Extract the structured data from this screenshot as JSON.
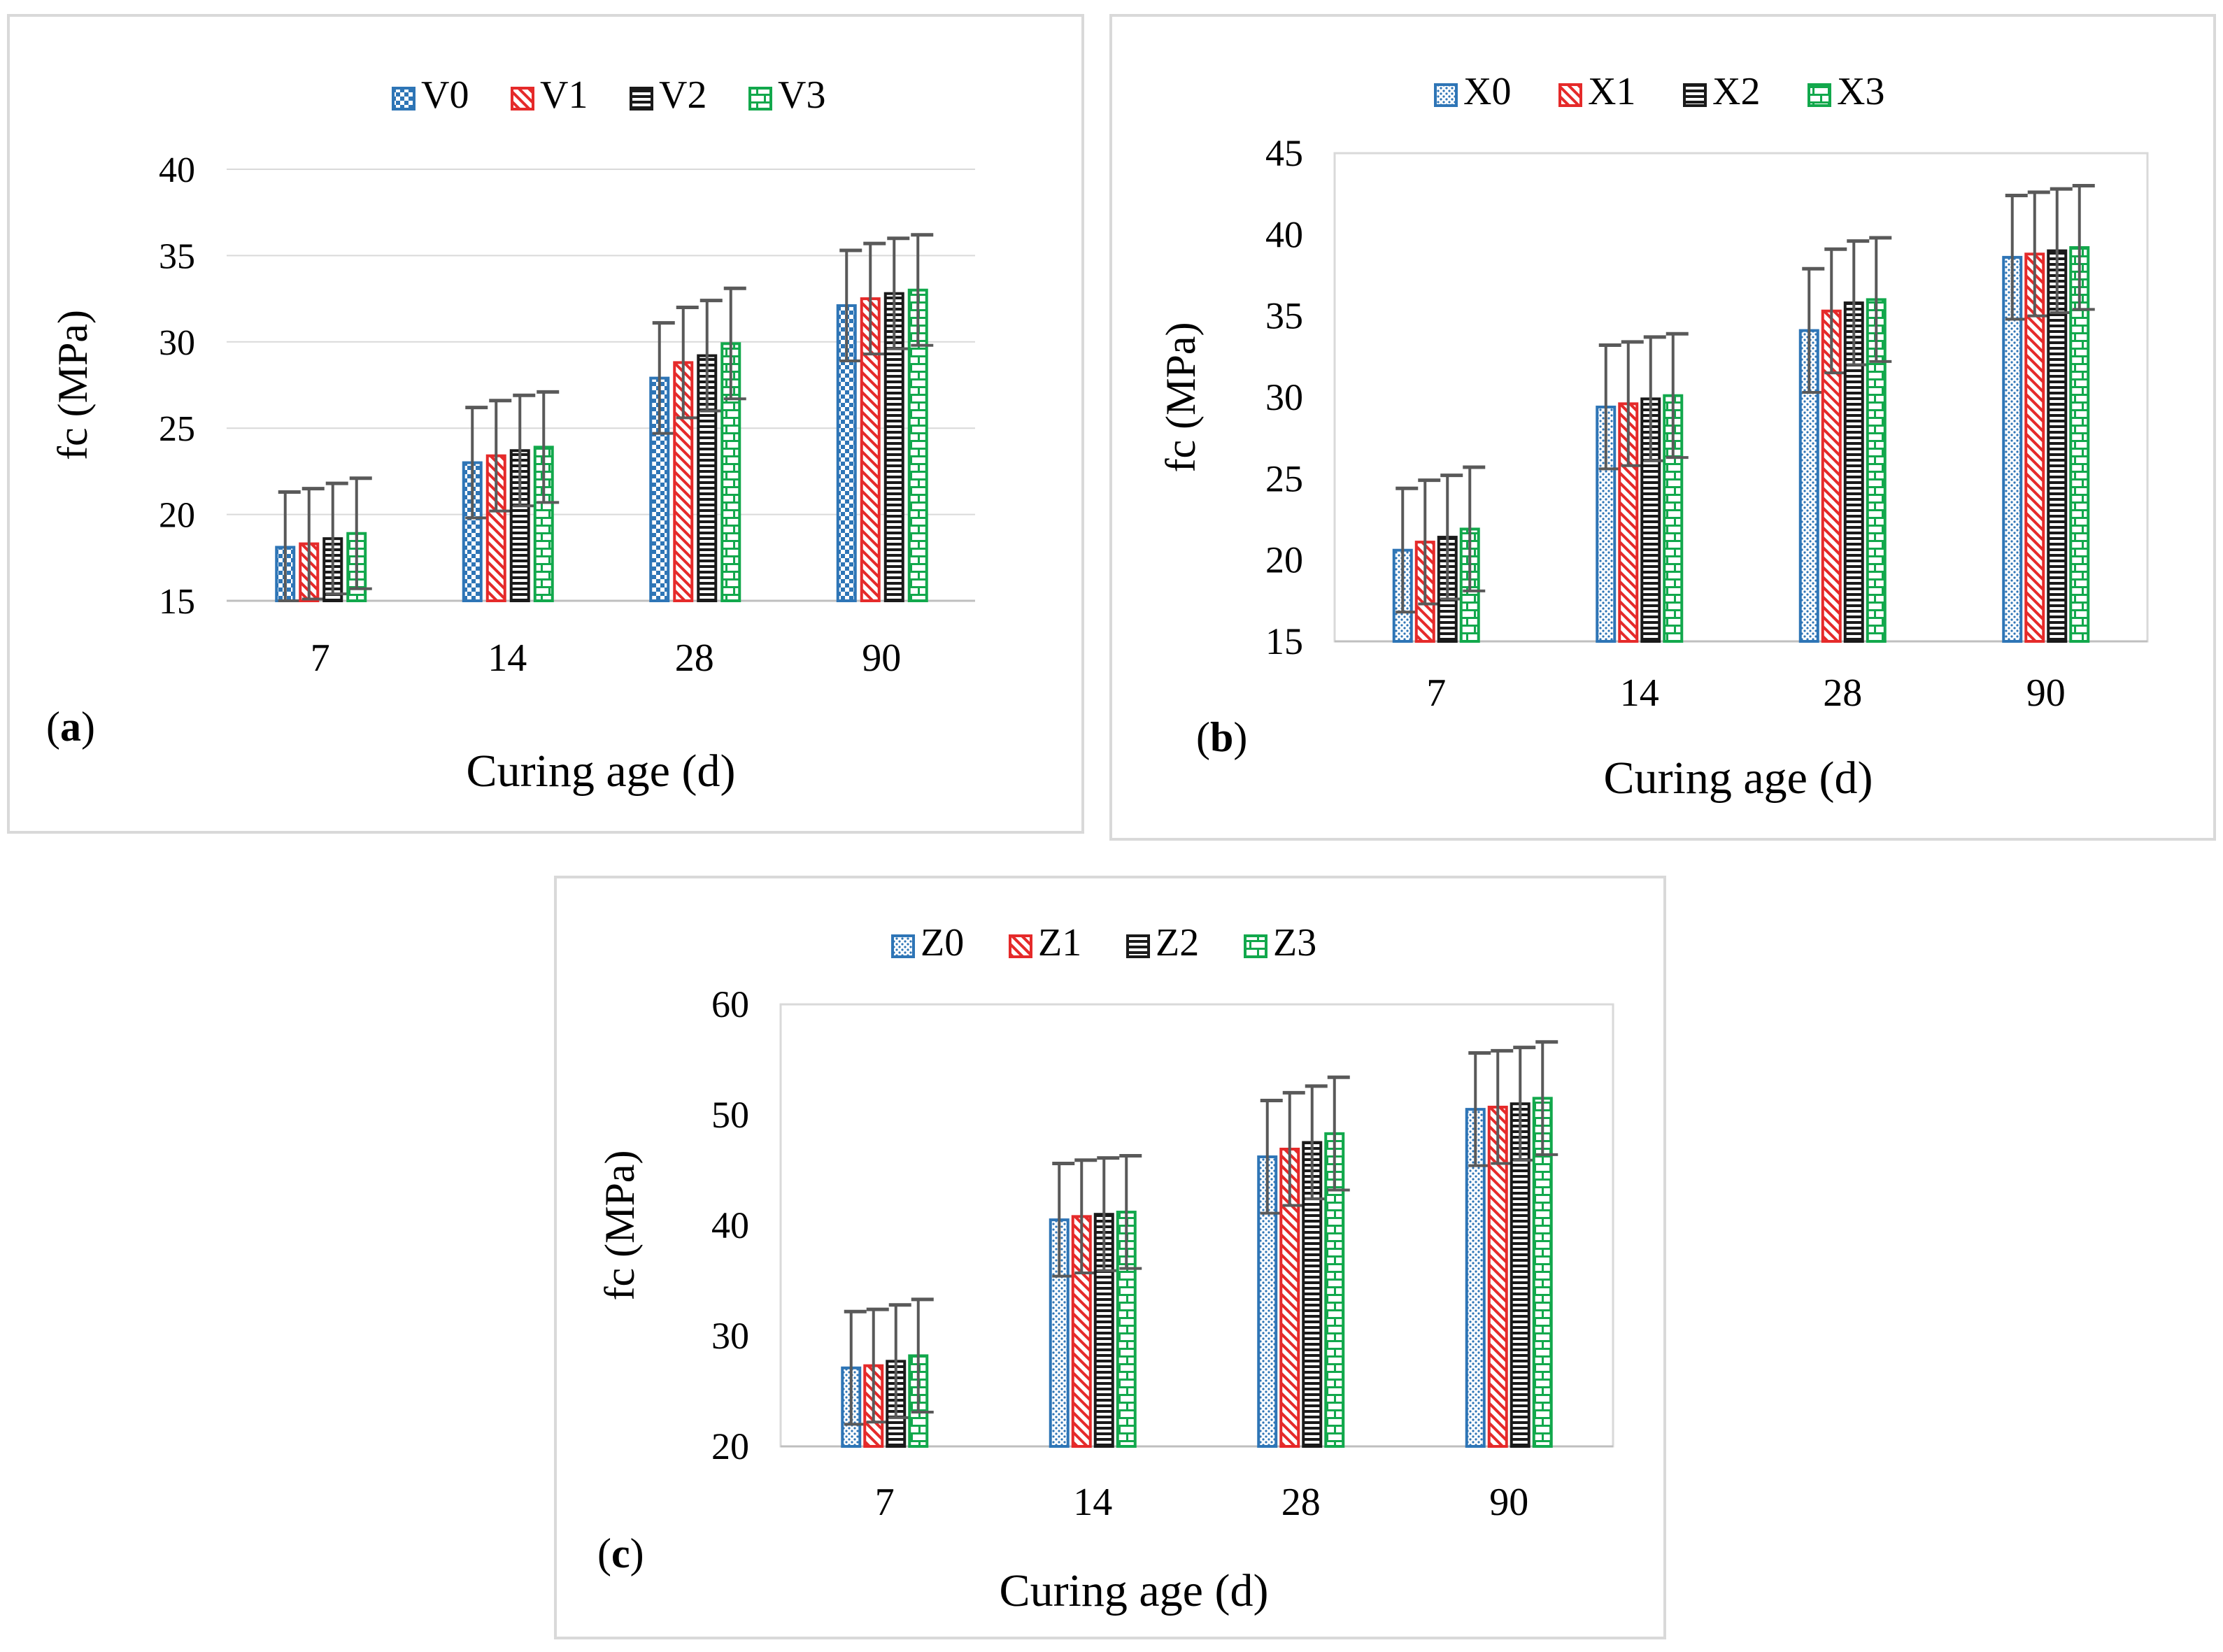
{
  "figure": {
    "xlabel": "Curing  age (d)",
    "ylabel": "fc (MPa)"
  },
  "colors": {
    "series0": "#2E75B6",
    "series1": "#E52A2A",
    "series2": "#1A1A1A",
    "series3": "#12A84C",
    "errorbar": "#595959",
    "gridline": "#d9d9d9",
    "axis": "#bfbfbf"
  },
  "chart_data": [
    {
      "panel": "a",
      "panel_label": "(a)",
      "type": "bar",
      "xlabel": "Curing  age (d)",
      "ylabel": "fc (MPa)",
      "categories": [
        "7",
        "14",
        "28",
        "90"
      ],
      "ylim": [
        15,
        40
      ],
      "yticks": [
        15,
        20,
        25,
        30,
        35,
        40
      ],
      "grid": true,
      "legend_position": "top",
      "series": [
        {
          "name": "V0",
          "values": [
            18.1,
            23.0,
            27.9,
            32.1
          ],
          "error": [
            3.2,
            3.2,
            3.2,
            3.2
          ],
          "pattern": "checker"
        },
        {
          "name": "V1",
          "values": [
            18.3,
            23.4,
            28.8,
            32.5
          ],
          "error": [
            3.2,
            3.2,
            3.2,
            3.2
          ],
          "pattern": "diagonal"
        },
        {
          "name": "V2",
          "values": [
            18.6,
            23.7,
            29.2,
            32.8
          ],
          "error": [
            3.2,
            3.2,
            3.2,
            3.2
          ],
          "pattern": "horizontal"
        },
        {
          "name": "V3",
          "values": [
            18.9,
            23.9,
            29.9,
            33.0
          ],
          "error": [
            3.2,
            3.2,
            3.2,
            3.2
          ],
          "pattern": "brick"
        }
      ]
    },
    {
      "panel": "b",
      "panel_label": "(b)",
      "type": "bar",
      "xlabel": "Curing age (d)",
      "ylabel": "fc (MPa)",
      "categories": [
        "7",
        "14",
        "28",
        "90"
      ],
      "ylim": [
        15,
        45
      ],
      "yticks": [
        15,
        20,
        25,
        30,
        35,
        40,
        45
      ],
      "grid": false,
      "legend_position": "top",
      "series": [
        {
          "name": "X0",
          "values": [
            20.6,
            29.4,
            34.1,
            38.6
          ],
          "error": [
            3.8,
            3.8,
            3.8,
            3.8
          ],
          "pattern": "dots"
        },
        {
          "name": "X1",
          "values": [
            21.1,
            29.6,
            35.3,
            38.8
          ],
          "error": [
            3.8,
            3.8,
            3.8,
            3.8
          ],
          "pattern": "diagonal"
        },
        {
          "name": "X2",
          "values": [
            21.4,
            29.9,
            35.8,
            39.0
          ],
          "error": [
            3.8,
            3.8,
            3.8,
            3.8
          ],
          "pattern": "horizontal"
        },
        {
          "name": "X3",
          "values": [
            21.9,
            30.1,
            36.0,
            39.2
          ],
          "error": [
            3.8,
            3.8,
            3.8,
            3.8
          ],
          "pattern": "brick"
        }
      ]
    },
    {
      "panel": "c",
      "panel_label": "(c)",
      "type": "bar",
      "xlabel": "Curing age (d)",
      "ylabel": "fc (MPa)",
      "categories": [
        "7",
        "14",
        "28",
        "90"
      ],
      "ylim": [
        20,
        60
      ],
      "yticks": [
        20,
        30,
        40,
        50,
        60
      ],
      "grid": false,
      "legend_position": "top",
      "series": [
        {
          "name": "Z0",
          "values": [
            27.1,
            40.5,
            46.2,
            50.5
          ],
          "error": [
            5.1,
            5.1,
            5.1,
            5.1
          ],
          "pattern": "dots"
        },
        {
          "name": "Z1",
          "values": [
            27.3,
            40.8,
            46.9,
            50.7
          ],
          "error": [
            5.1,
            5.1,
            5.1,
            5.1
          ],
          "pattern": "diagonal"
        },
        {
          "name": "Z2",
          "values": [
            27.7,
            41.0,
            47.5,
            51.0
          ],
          "error": [
            5.1,
            5.1,
            5.1,
            5.1
          ],
          "pattern": "horizontal"
        },
        {
          "name": "Z3",
          "values": [
            28.2,
            41.2,
            48.3,
            51.5
          ],
          "error": [
            5.1,
            5.1,
            5.1,
            5.1
          ],
          "pattern": "brick"
        }
      ]
    }
  ]
}
